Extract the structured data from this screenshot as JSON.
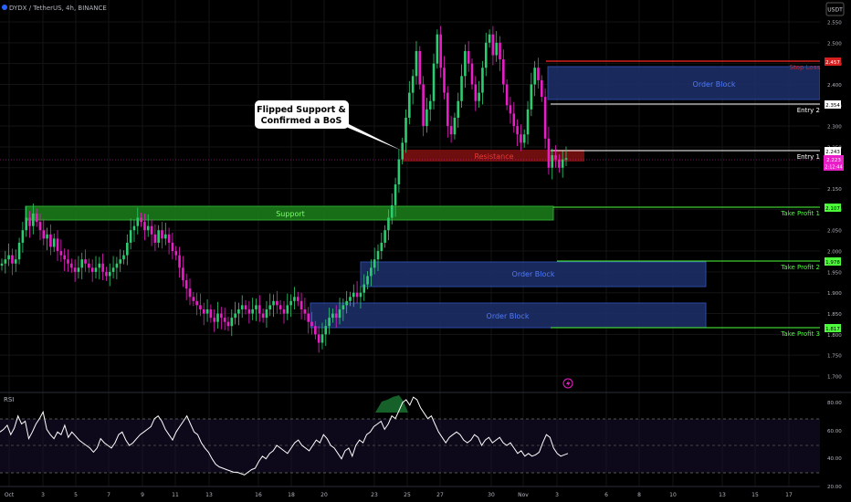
{
  "header": {
    "symbol": "DYDX / TetherUS, 4h, BINANCE",
    "quote_button": "USDT"
  },
  "colors": {
    "background": "#000000",
    "grid": "#141414",
    "axis_text": "#b2b5be",
    "up": "#26a69a",
    "down": "#e91ec7",
    "up_alt": "#2ecc71",
    "support_zone": "#1a7a1a",
    "resistance_zone": "#7a1010",
    "order_block": "#1c2e66",
    "stop_loss": "#d61f1f",
    "entry": "#ffffff",
    "take_profit": "#4cff3a",
    "price": "#e91ec7"
  },
  "price_axis": {
    "ticks": [
      "2.550",
      "2.500",
      "2.450",
      "2.400",
      "2.350",
      "2.300",
      "2.250",
      "2.200",
      "2.150",
      "2.100",
      "2.050",
      "2.000",
      "1.950",
      "1.900",
      "1.850",
      "1.800",
      "1.750",
      "1.700"
    ]
  },
  "time_axis": {
    "ticks": [
      "Oct",
      "3",
      "5",
      "7",
      "9",
      "11",
      "13",
      "16",
      "18",
      "20",
      "23",
      "25",
      "27",
      "30",
      "Nov",
      "3",
      "6",
      "8",
      "10",
      "13",
      "15",
      "17"
    ]
  },
  "levels": {
    "stop_loss": {
      "label": "Stop Loss",
      "price": "2.457"
    },
    "entry2": {
      "label": "Entry 2",
      "price": "2.354"
    },
    "entry1": {
      "label": "Entry 1",
      "price": "2.243"
    },
    "current": {
      "price": "2.223",
      "countdown": "2:12:44"
    },
    "tp1": {
      "label": "Take Profit 1",
      "price": "2.107"
    },
    "tp2": {
      "label": "Take Profit 2",
      "price": "1.978"
    },
    "tp3": {
      "label": "Take Profit 3",
      "price": "1.817"
    }
  },
  "zones": {
    "support": "Support",
    "resistance": "Resistance",
    "order_block_top": "Order Block",
    "order_block_mid": "Order Block",
    "order_block_low": "Order Block"
  },
  "annotation": {
    "line1": "Flipped Support &",
    "line2": "Confirmed a BoS"
  },
  "rsi": {
    "label": "RSI",
    "ticks": [
      "80.00",
      "60.00",
      "40.00",
      "20.00"
    ],
    "values": [
      60,
      62,
      65,
      58,
      63,
      72,
      66,
      68,
      55,
      60,
      66,
      70,
      75,
      62,
      58,
      55,
      60,
      58,
      65,
      56,
      60,
      57,
      54,
      52,
      50,
      48,
      45,
      48,
      55,
      52,
      50,
      48,
      52,
      58,
      60,
      54,
      50,
      52,
      55,
      58,
      60,
      62,
      64,
      70,
      72,
      68,
      62,
      58,
      54,
      60,
      64,
      68,
      72,
      66,
      60,
      58,
      52,
      48,
      45,
      40,
      36,
      34,
      33,
      32,
      31,
      30,
      30,
      29,
      28,
      30,
      32,
      33,
      38,
      42,
      40,
      44,
      46,
      50,
      48,
      46,
      44,
      48,
      52,
      54,
      50,
      48,
      46,
      50,
      54,
      52,
      58,
      55,
      50,
      48,
      44,
      40,
      46,
      48,
      42,
      50,
      54,
      52,
      58,
      60,
      64,
      66,
      68,
      62,
      66,
      72,
      70,
      76,
      82,
      84,
      80,
      86,
      84,
      78,
      74,
      70,
      72,
      66,
      60,
      56,
      52,
      56,
      58,
      60,
      58,
      54,
      52,
      54,
      58,
      56,
      50,
      54,
      56,
      52,
      54,
      56,
      52,
      50,
      52,
      48,
      44,
      46,
      42,
      44,
      42,
      43,
      45,
      52,
      58,
      56,
      48,
      44,
      42,
      43,
      44
    ]
  },
  "chart_data": {
    "type": "candlestick",
    "title": "DYDX / TetherUS, 4h, BINANCE",
    "ylim": [
      1.68,
      2.575
    ],
    "x_ticks": [
      "Oct",
      "3",
      "5",
      "7",
      "9",
      "11",
      "13",
      "16",
      "18",
      "20",
      "23",
      "25",
      "27",
      "30",
      "Nov",
      "3",
      "6",
      "8",
      "10",
      "13",
      "15",
      "17"
    ],
    "close": [
      1.97,
      1.98,
      1.99,
      1.97,
      1.98,
      2.02,
      2.05,
      2.08,
      2.06,
      2.09,
      2.07,
      2.05,
      2.03,
      2.04,
      2.01,
      2.03,
      2.0,
      1.99,
      1.98,
      1.97,
      1.96,
      1.95,
      1.96,
      1.98,
      1.97,
      1.96,
      1.95,
      1.96,
      1.97,
      1.95,
      1.94,
      1.95,
      1.96,
      1.97,
      1.98,
      1.99,
      2.02,
      2.05,
      2.06,
      2.08,
      2.07,
      2.05,
      2.06,
      2.04,
      2.02,
      2.05,
      2.03,
      2.04,
      2.02,
      2.0,
      1.99,
      1.96,
      1.93,
      1.91,
      1.89,
      1.88,
      1.87,
      1.86,
      1.85,
      1.86,
      1.84,
      1.83,
      1.85,
      1.84,
      1.83,
      1.82,
      1.84,
      1.85,
      1.86,
      1.87,
      1.86,
      1.85,
      1.86,
      1.87,
      1.85,
      1.84,
      1.86,
      1.87,
      1.88,
      1.87,
      1.86,
      1.85,
      1.87,
      1.88,
      1.89,
      1.88,
      1.86,
      1.85,
      1.83,
      1.82,
      1.8,
      1.78,
      1.8,
      1.82,
      1.84,
      1.85,
      1.84,
      1.86,
      1.87,
      1.88,
      1.89,
      1.9,
      1.89,
      1.9,
      1.92,
      1.94,
      1.96,
      1.98,
      2.0,
      2.02,
      2.05,
      2.08,
      2.11,
      2.16,
      2.22,
      2.26,
      2.32,
      2.38,
      2.42,
      2.48,
      2.4,
      2.3,
      2.34,
      2.36,
      2.45,
      2.52,
      2.44,
      2.38,
      2.3,
      2.28,
      2.32,
      2.36,
      2.42,
      2.48,
      2.45,
      2.4,
      2.36,
      2.38,
      2.44,
      2.5,
      2.52,
      2.47,
      2.5,
      2.46,
      2.4,
      2.35,
      2.33,
      2.3,
      2.28,
      2.26,
      2.28,
      2.34,
      2.4,
      2.44,
      2.41,
      2.37,
      2.27,
      2.2,
      2.23,
      2.22,
      2.2,
      2.22,
      2.223
    ],
    "levels": {
      "stop_loss": 2.457,
      "entry_2": 2.354,
      "entry_1": 2.243,
      "take_profit_1": 2.107,
      "take_profit_2": 1.978,
      "take_profit_3": 1.817,
      "current": 2.223
    },
    "zones": {
      "support": [
        2.085,
        2.115
      ],
      "resistance": [
        2.218,
        2.245
      ],
      "order_block_top": [
        2.37,
        2.45
      ],
      "order_block_mid": [
        1.925,
        1.98
      ],
      "order_block_low": [
        1.83,
        1.885
      ]
    }
  }
}
